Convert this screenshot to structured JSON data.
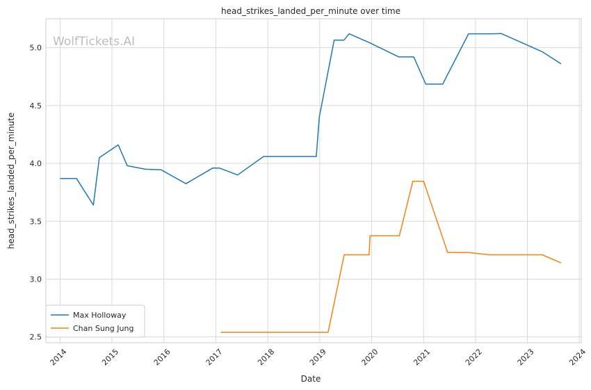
{
  "chart_data": {
    "type": "line",
    "title": "head_strikes_landed_per_minute over time",
    "xlabel": "Date",
    "ylabel": "head_strikes_landed_per_minute",
    "watermark": "WolfTickets.AI",
    "xlim": [
      "2013-09-23",
      "2024-01-15"
    ],
    "ylim": [
      2.45,
      5.25
    ],
    "x_ticks": [
      "2014",
      "2015",
      "2016",
      "2017",
      "2018",
      "2019",
      "2020",
      "2021",
      "2022",
      "2023",
      "2024"
    ],
    "y_ticks": [
      "2.5",
      "3.0",
      "3.5",
      "4.0",
      "4.5",
      "5.0"
    ],
    "grid": true,
    "legend_position": "lower-left",
    "series": [
      {
        "name": "Max Holloway",
        "color": "#1f77b4",
        "points": [
          [
            "2014-01-01",
            3.87
          ],
          [
            "2014-04-26",
            3.87
          ],
          [
            "2014-08-23",
            3.64
          ],
          [
            "2014-10-04",
            4.05
          ],
          [
            "2015-02-14",
            4.16
          ],
          [
            "2015-04-18",
            3.98
          ],
          [
            "2015-08-23",
            3.95
          ],
          [
            "2015-12-12",
            3.945
          ],
          [
            "2016-06-04",
            3.825
          ],
          [
            "2016-12-10",
            3.96
          ],
          [
            "2017-01-25",
            3.96
          ],
          [
            "2017-06-03",
            3.9
          ],
          [
            "2017-12-02",
            4.06
          ],
          [
            "2018-07-28",
            4.06
          ],
          [
            "2018-12-08",
            4.06
          ],
          [
            "2018-12-29",
            4.4
          ],
          [
            "2019-04-13",
            5.065
          ],
          [
            "2019-06-20",
            5.065
          ],
          [
            "2019-07-27",
            5.12
          ],
          [
            "2019-12-14",
            5.045
          ],
          [
            "2020-07-11",
            4.92
          ],
          [
            "2020-10-24",
            4.92
          ],
          [
            "2021-01-16",
            4.685
          ],
          [
            "2021-05-15",
            4.685
          ],
          [
            "2021-11-13",
            5.12
          ],
          [
            "2022-05-01",
            5.12
          ],
          [
            "2022-07-02",
            5.122
          ],
          [
            "2023-04-15",
            4.965
          ],
          [
            "2023-08-26",
            4.86
          ]
        ]
      },
      {
        "name": "Chan Sung Jung",
        "color": "#ff7f0e",
        "points": [
          [
            "2017-02-04",
            2.54
          ],
          [
            "2019-03-01",
            2.54
          ],
          [
            "2019-06-22",
            3.21
          ],
          [
            "2019-12-15",
            3.21
          ],
          [
            "2019-12-21",
            3.375
          ],
          [
            "2020-07-15",
            3.375
          ],
          [
            "2020-10-17",
            3.845
          ],
          [
            "2021-01-01",
            3.845
          ],
          [
            "2021-06-19",
            3.23
          ],
          [
            "2021-11-13",
            3.23
          ],
          [
            "2022-04-09",
            3.21
          ],
          [
            "2023-04-15",
            3.21
          ],
          [
            "2023-08-26",
            3.14
          ]
        ]
      }
    ]
  }
}
